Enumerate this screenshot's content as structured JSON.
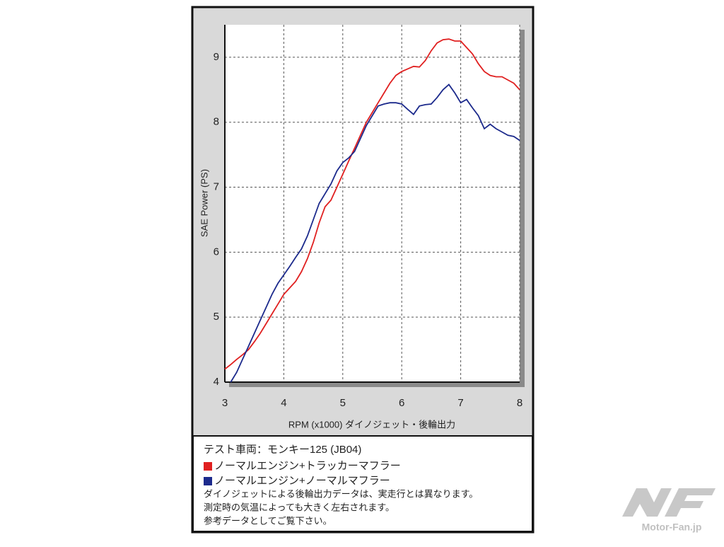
{
  "chart_data": {
    "type": "line",
    "ylabel": "SAE Power (PS)",
    "xlabel": "RPM (x1000) ダイノジェット・後輪出力",
    "xlim": [
      3,
      8
    ],
    "xticks": [
      3,
      4,
      5,
      6,
      7,
      8
    ],
    "ylim": [
      4,
      9.5
    ],
    "yticks": [
      4,
      5,
      6,
      7,
      8,
      9
    ],
    "grid": true,
    "x": [
      3.0,
      3.1,
      3.2,
      3.3,
      3.4,
      3.5,
      3.6,
      3.7,
      3.8,
      3.9,
      4.0,
      4.1,
      4.2,
      4.3,
      4.4,
      4.5,
      4.6,
      4.7,
      4.8,
      4.9,
      5.0,
      5.1,
      5.2,
      5.3,
      5.4,
      5.5,
      5.6,
      5.7,
      5.8,
      5.9,
      6.0,
      6.1,
      6.2,
      6.3,
      6.4,
      6.5,
      6.6,
      6.7,
      6.8,
      6.9,
      7.0,
      7.1,
      7.2,
      7.3,
      7.4,
      7.5,
      7.6,
      7.7,
      7.8,
      7.9,
      8.0
    ],
    "series": [
      {
        "name": "ノーマルエンジン+トラッカーマフラー",
        "color": "#e02020",
        "values": [
          4.2,
          4.27,
          4.35,
          4.42,
          4.5,
          4.62,
          4.75,
          4.9,
          5.05,
          5.2,
          5.35,
          5.45,
          5.55,
          5.7,
          5.9,
          6.15,
          6.45,
          6.7,
          6.8,
          7.0,
          7.2,
          7.4,
          7.6,
          7.8,
          8.0,
          8.15,
          8.3,
          8.45,
          8.6,
          8.72,
          8.78,
          8.82,
          8.86,
          8.85,
          8.95,
          9.1,
          9.22,
          9.27,
          9.28,
          9.25,
          9.25,
          9.15,
          9.05,
          8.9,
          8.78,
          8.72,
          8.7,
          8.7,
          8.65,
          8.6,
          8.5
        ]
      },
      {
        "name": "ノーマルエンジン+ノーマルマフラー",
        "color": "#1c2a8c",
        "values": [
          null,
          4.0,
          4.15,
          4.35,
          4.55,
          4.75,
          4.95,
          5.15,
          5.35,
          5.52,
          5.65,
          5.78,
          5.92,
          6.05,
          6.25,
          6.5,
          6.75,
          6.9,
          7.05,
          7.25,
          7.38,
          7.45,
          7.55,
          7.75,
          7.95,
          8.1,
          8.25,
          8.28,
          8.3,
          8.3,
          8.28,
          8.2,
          8.12,
          8.25,
          8.27,
          8.28,
          8.38,
          8.5,
          8.58,
          8.45,
          8.3,
          8.35,
          8.22,
          8.1,
          7.9,
          7.97,
          7.9,
          7.85,
          7.8,
          7.78,
          7.72
        ]
      }
    ],
    "caption": "テスト車両：モンキー125 (JB04)",
    "notes": [
      "ダイノジェットによる後輪出力データは、実走行とは異なります。",
      "測定時の気温によっても大きく左右されます。",
      "参考データとしてご覧下さい。"
    ]
  },
  "watermark": "Motor-Fan.jp"
}
